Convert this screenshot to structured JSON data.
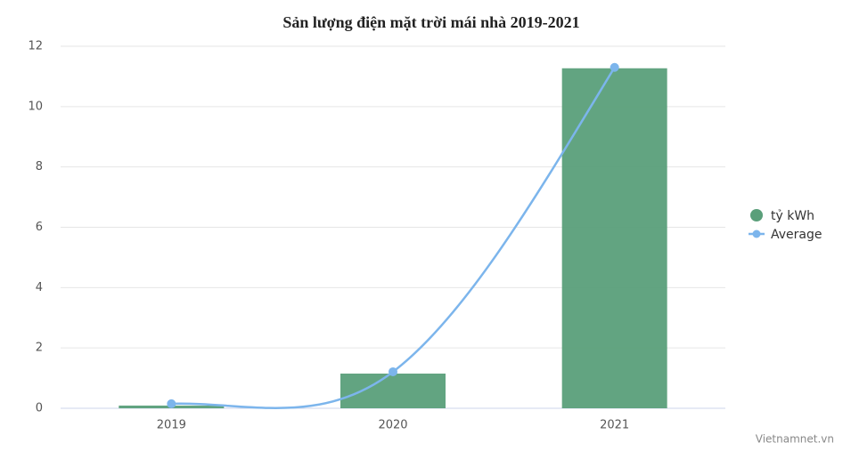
{
  "chart_data": {
    "type": "combo",
    "title": "Sản lượng điện mặt trời mái nhà 2019-2021",
    "categories": [
      "2019",
      "2020",
      "2021"
    ],
    "series": [
      {
        "name": "tỷ kWh",
        "type": "bar",
        "color": "#5a9f7a",
        "values": [
          0.09,
          1.15,
          11.27
        ]
      },
      {
        "name": "Average",
        "type": "line",
        "color": "#7cb5ec",
        "values": [
          0.15,
          1.21,
          11.3
        ]
      }
    ],
    "ylim": [
      0,
      12
    ],
    "yticks": [
      0,
      2,
      4,
      6,
      8,
      10,
      12
    ],
    "grid": true,
    "legend": "right",
    "source": "Vietnamnet.vn"
  }
}
